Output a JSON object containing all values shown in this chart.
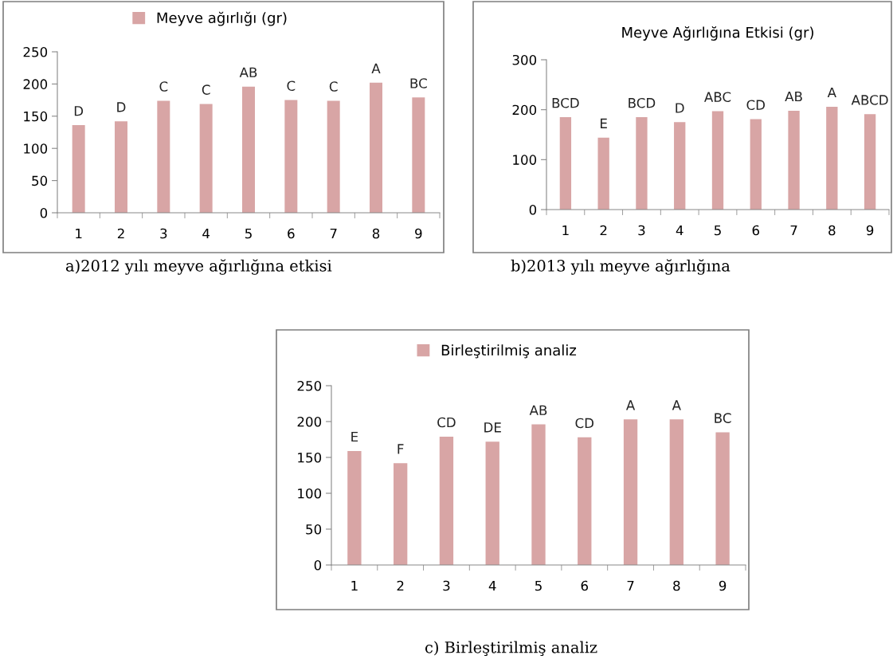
{
  "chart_data": [
    {
      "type": "bar",
      "categories": [
        "1",
        "2",
        "3",
        "4",
        "5",
        "6",
        "7",
        "8",
        "9"
      ],
      "series": [
        {
          "name": "Meyve ağırlığı (gr)",
          "color": "#d8a5a5",
          "values": [
            136,
            142,
            174,
            169,
            196,
            175,
            174,
            202,
            179
          ],
          "value_labels": [
            "D",
            "D",
            "C",
            "C",
            "AB",
            "C",
            "C",
            "A",
            "BC"
          ]
        }
      ],
      "ylim": [
        0,
        250
      ],
      "yticks": [
        0,
        50,
        100,
        150,
        200,
        250
      ],
      "legend": "top",
      "grid": false,
      "annotations": [
        "a)2012 yılı meyve ağırlığına etkisi"
      ]
    },
    {
      "type": "bar",
      "title": "Meyve Ağırlığına Etkisi (gr)",
      "categories": [
        "1",
        "2",
        "3",
        "4",
        "5",
        "6",
        "7",
        "8",
        "9"
      ],
      "series": [
        {
          "color": "#d8a5a5",
          "values": [
            185,
            144,
            185,
            175,
            197,
            181,
            198,
            206,
            191
          ],
          "value_labels": [
            "BCD",
            "E",
            "BCD",
            "D",
            "ABC",
            "CD",
            "AB",
            "A",
            "ABCD"
          ]
        }
      ],
      "ylim": [
        0,
        300
      ],
      "yticks": [
        0,
        100,
        200,
        300
      ],
      "grid": false,
      "annotations": [
        "b)2013 yılı meyve ağırlığına"
      ]
    },
    {
      "type": "bar",
      "categories": [
        "1",
        "2",
        "3",
        "4",
        "5",
        "6",
        "7",
        "8",
        "9"
      ],
      "series": [
        {
          "name": "Birleştirilmiş analiz",
          "color": "#d8a5a5",
          "values": [
            159,
            142,
            179,
            172,
            196,
            178,
            203,
            203,
            185
          ],
          "value_labels": [
            "E",
            "F",
            "CD",
            "DE",
            "AB",
            "CD",
            "A",
            "A",
            "BC"
          ]
        }
      ],
      "ylim": [
        0,
        250
      ],
      "yticks": [
        0,
        50,
        100,
        150,
        200,
        250
      ],
      "legend": "top",
      "grid": false,
      "annotations": [
        "c) Birleştirilmiş analiz"
      ]
    }
  ]
}
